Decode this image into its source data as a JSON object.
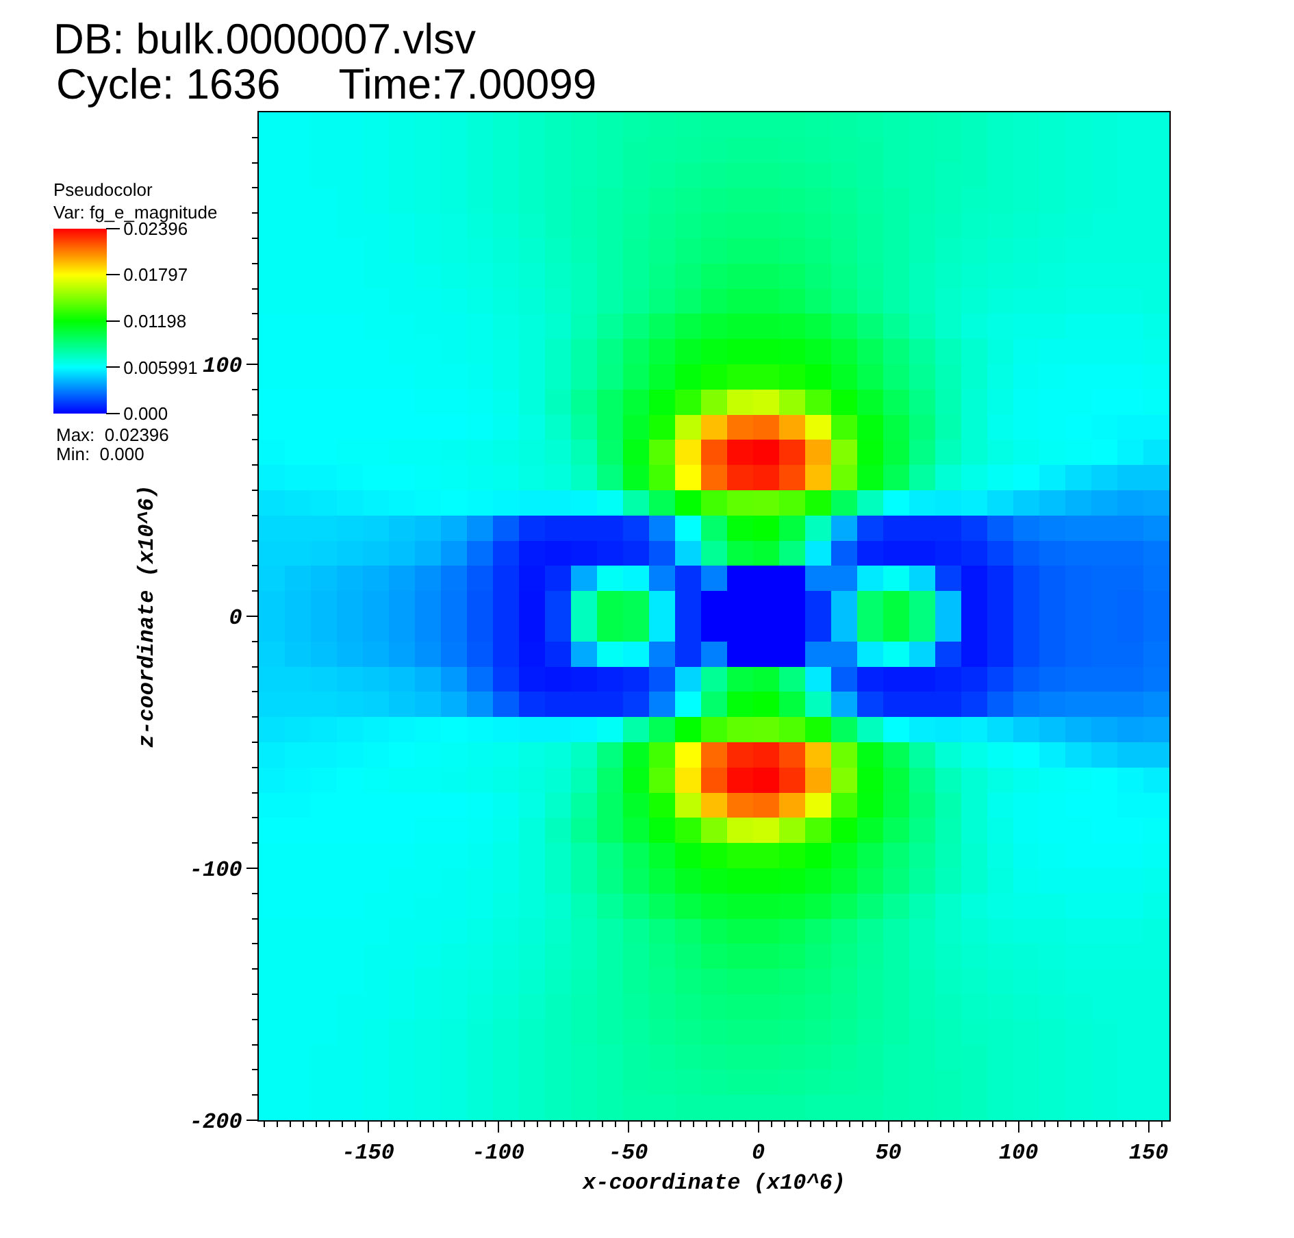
{
  "chart_data": {
    "type": "heatmap",
    "title": "DB: bulk.0000007.vlsv",
    "subtitle": "Cycle: 1636     Time:7.00099",
    "xlabel": "x-coordinate (x10^6)",
    "ylabel": "z-coordinate (x10^6)",
    "clabel": "Pseudocolor\nVar: fg_e_magnitude",
    "annotations": [
      "Max:  0.02396",
      "Min:  0.000"
    ],
    "xlim": [
      -192,
      158
    ],
    "ylim": [
      -200,
      200
    ],
    "xticks": [
      {
        "value": -190,
        "label": null
      },
      {
        "value": -185,
        "label": null
      },
      {
        "value": -180,
        "label": null
      },
      {
        "value": -175,
        "label": null
      },
      {
        "value": -170,
        "label": null
      },
      {
        "value": -165,
        "label": null
      },
      {
        "value": -160,
        "label": null
      },
      {
        "value": -155,
        "label": null
      },
      -150,
      {
        "value": -145,
        "label": null
      },
      {
        "value": -140,
        "label": null
      },
      {
        "value": -135,
        "label": null
      },
      {
        "value": -130,
        "label": null
      },
      {
        "value": -125,
        "label": null
      },
      {
        "value": -120,
        "label": null
      },
      {
        "value": -115,
        "label": null
      },
      {
        "value": -110,
        "label": null
      },
      {
        "value": -105,
        "label": null
      },
      -100,
      {
        "value": -95,
        "label": null
      },
      {
        "value": -90,
        "label": null
      },
      {
        "value": -85,
        "label": null
      },
      {
        "value": -80,
        "label": null
      },
      {
        "value": -75,
        "label": null
      },
      {
        "value": -70,
        "label": null
      },
      {
        "value": -65,
        "label": null
      },
      {
        "value": -60,
        "label": null
      },
      {
        "value": -55,
        "label": null
      },
      -50,
      {
        "value": -45,
        "label": null
      },
      {
        "value": -40,
        "label": null
      },
      {
        "value": -35,
        "label": null
      },
      {
        "value": -30,
        "label": null
      },
      {
        "value": -25,
        "label": null
      },
      {
        "value": -20,
        "label": null
      },
      {
        "value": -15,
        "label": null
      },
      {
        "value": -10,
        "label": null
      },
      {
        "value": -5,
        "label": null
      },
      0,
      {
        "value": 5,
        "label": null
      },
      {
        "value": 10,
        "label": null
      },
      {
        "value": 15,
        "label": null
      },
      {
        "value": 20,
        "label": null
      },
      {
        "value": 25,
        "label": null
      },
      {
        "value": 30,
        "label": null
      },
      {
        "value": 35,
        "label": null
      },
      {
        "value": 40,
        "label": null
      },
      {
        "value": 45,
        "label": null
      },
      50,
      {
        "value": 55,
        "label": null
      },
      {
        "value": 60,
        "label": null
      },
      {
        "value": 65,
        "label": null
      },
      {
        "value": 70,
        "label": null
      },
      {
        "value": 75,
        "label": null
      },
      {
        "value": 80,
        "label": null
      },
      {
        "value": 85,
        "label": null
      },
      {
        "value": 90,
        "label": null
      },
      {
        "value": 95,
        "label": null
      },
      100,
      {
        "value": 105,
        "label": null
      },
      {
        "value": 110,
        "label": null
      },
      {
        "value": 115,
        "label": null
      },
      {
        "value": 120,
        "label": null
      },
      {
        "value": 125,
        "label": null
      },
      {
        "value": 130,
        "label": null
      },
      {
        "value": 135,
        "label": null
      },
      {
        "value": 140,
        "label": null
      },
      {
        "value": 145,
        "label": null
      },
      150,
      {
        "value": 155,
        "label": null
      }
    ],
    "yticks": [
      -200,
      {
        "value": -190,
        "label": null
      },
      {
        "value": -180,
        "label": null
      },
      {
        "value": -170,
        "label": null
      },
      {
        "value": -160,
        "label": null
      },
      {
        "value": -150,
        "label": null
      },
      {
        "value": -140,
        "label": null
      },
      {
        "value": -130,
        "label": null
      },
      {
        "value": -120,
        "label": null
      },
      {
        "value": -110,
        "label": null
      },
      -100,
      {
        "value": -90,
        "label": null
      },
      {
        "value": -80,
        "label": null
      },
      {
        "value": -70,
        "label": null
      },
      {
        "value": -60,
        "label": null
      },
      {
        "value": -50,
        "label": null
      },
      {
        "value": -40,
        "label": null
      },
      {
        "value": -30,
        "label": null
      },
      {
        "value": -20,
        "label": null
      },
      {
        "value": -10,
        "label": null
      },
      0,
      {
        "value": 10,
        "label": null
      },
      {
        "value": 20,
        "label": null
      },
      {
        "value": 30,
        "label": null
      },
      {
        "value": 40,
        "label": null
      },
      {
        "value": 50,
        "label": null
      },
      {
        "value": 60,
        "label": null
      },
      {
        "value": 70,
        "label": null
      },
      {
        "value": 80,
        "label": null
      },
      {
        "value": 90,
        "label": null
      },
      100,
      {
        "value": 110,
        "label": null
      },
      {
        "value": 120,
        "label": null
      },
      {
        "value": 130,
        "label": null
      },
      {
        "value": 140,
        "label": null
      },
      {
        "value": 150,
        "label": null
      },
      {
        "value": 160,
        "label": null
      },
      {
        "value": 170,
        "label": null
      },
      {
        "value": 180,
        "label": null
      },
      {
        "value": 190,
        "label": null
      }
    ],
    "clim": [
      0,
      0.02396
    ],
    "cticks": [
      {
        "value": 0,
        "label": "0.000"
      },
      0.005991,
      0.01198,
      0.01797,
      0.02396
    ],
    "x": [
      -187,
      -177,
      -167,
      -157,
      -147,
      -137,
      -127,
      -117,
      -107,
      -97,
      -87,
      -77,
      -67,
      -57,
      -47,
      -37,
      -27,
      -17,
      -7,
      3,
      13,
      23,
      33,
      43,
      53,
      63,
      73,
      83,
      93,
      103,
      113,
      123,
      133,
      143,
      153
    ],
    "y": [
      195,
      185,
      175,
      165,
      155,
      145,
      135,
      125,
      115,
      105,
      95,
      85,
      75,
      65,
      55,
      45,
      35,
      25,
      15,
      5,
      -5,
      -15,
      -25,
      -35,
      -45,
      -55,
      -65,
      -75,
      -85,
      -95,
      -105,
      -115,
      -125,
      -135,
      -145,
      -155,
      -165,
      -175,
      -185,
      -195
    ],
    "cells": [
      [
        0.0062,
        0.0062,
        0.0063,
        0.0063,
        0.0064,
        0.0065,
        0.0066,
        0.0067,
        0.0069,
        0.0071,
        0.0073,
        0.0075,
        0.0077,
        0.0079,
        0.008,
        0.0081,
        0.0082,
        0.0083,
        0.0083,
        0.0083,
        0.0083,
        0.0082,
        0.0081,
        0.008,
        0.0079,
        0.0078,
        0.0077,
        0.0075,
        0.0073,
        0.0072,
        0.0071,
        0.007,
        0.0069,
        0.0068,
        0.0068
      ],
      [
        0.0062,
        0.0062,
        0.0063,
        0.0063,
        0.0064,
        0.0065,
        0.0066,
        0.0067,
        0.0069,
        0.0071,
        0.0073,
        0.0075,
        0.0077,
        0.0079,
        0.0081,
        0.0082,
        0.0083,
        0.0084,
        0.0085,
        0.0085,
        0.0084,
        0.0083,
        0.0082,
        0.0081,
        0.0079,
        0.0078,
        0.0077,
        0.0075,
        0.0073,
        0.0072,
        0.0071,
        0.007,
        0.0069,
        0.0068,
        0.0068
      ],
      [
        0.0062,
        0.0062,
        0.0063,
        0.0063,
        0.0064,
        0.0065,
        0.0066,
        0.0067,
        0.0069,
        0.0071,
        0.0073,
        0.0075,
        0.0077,
        0.0079,
        0.0081,
        0.0083,
        0.0085,
        0.0086,
        0.0087,
        0.0087,
        0.0086,
        0.0085,
        0.0083,
        0.0081,
        0.0079,
        0.0078,
        0.0076,
        0.0075,
        0.0073,
        0.0072,
        0.0071,
        0.007,
        0.0069,
        0.0068,
        0.0068
      ],
      [
        0.0062,
        0.0062,
        0.0062,
        0.0063,
        0.0064,
        0.0065,
        0.0066,
        0.0067,
        0.0069,
        0.0071,
        0.0073,
        0.0075,
        0.0078,
        0.008,
        0.0082,
        0.0085,
        0.0087,
        0.0088,
        0.0089,
        0.0089,
        0.0088,
        0.0087,
        0.0085,
        0.0082,
        0.008,
        0.0078,
        0.0076,
        0.0074,
        0.0073,
        0.0072,
        0.0071,
        0.007,
        0.0069,
        0.0068,
        0.0068
      ],
      [
        0.0062,
        0.0062,
        0.0062,
        0.0063,
        0.0063,
        0.0064,
        0.0065,
        0.0066,
        0.0068,
        0.007,
        0.0072,
        0.0075,
        0.0078,
        0.008,
        0.0083,
        0.0086,
        0.0088,
        0.009,
        0.0091,
        0.0091,
        0.009,
        0.0088,
        0.0086,
        0.0083,
        0.008,
        0.0077,
        0.0075,
        0.0073,
        0.0072,
        0.0071,
        0.007,
        0.0069,
        0.0068,
        0.0068,
        0.0068
      ],
      [
        0.0062,
        0.0062,
        0.0062,
        0.0062,
        0.0063,
        0.0064,
        0.0065,
        0.0066,
        0.0067,
        0.0069,
        0.0071,
        0.0074,
        0.0077,
        0.008,
        0.0084,
        0.0087,
        0.009,
        0.0092,
        0.0094,
        0.0094,
        0.0092,
        0.009,
        0.0087,
        0.0083,
        0.008,
        0.0077,
        0.0074,
        0.0072,
        0.0071,
        0.007,
        0.0069,
        0.0068,
        0.0068,
        0.0068,
        0.0068
      ],
      [
        0.0062,
        0.0062,
        0.0062,
        0.0062,
        0.0063,
        0.0063,
        0.0064,
        0.0065,
        0.0066,
        0.0068,
        0.007,
        0.0073,
        0.0076,
        0.008,
        0.0084,
        0.0088,
        0.0092,
        0.0096,
        0.0098,
        0.0098,
        0.0096,
        0.0092,
        0.0088,
        0.0084,
        0.008,
        0.0076,
        0.0073,
        0.0071,
        0.007,
        0.0069,
        0.0068,
        0.0067,
        0.0067,
        0.0067,
        0.0067
      ],
      [
        0.0062,
        0.0062,
        0.0062,
        0.0062,
        0.0062,
        0.0063,
        0.0063,
        0.0064,
        0.0065,
        0.0067,
        0.0069,
        0.0072,
        0.0076,
        0.008,
        0.0085,
        0.009,
        0.0095,
        0.01,
        0.0103,
        0.0103,
        0.01,
        0.0095,
        0.009,
        0.0085,
        0.008,
        0.0076,
        0.0072,
        0.007,
        0.0068,
        0.0067,
        0.0067,
        0.0066,
        0.0066,
        0.0066,
        0.0067
      ],
      [
        0.0061,
        0.0061,
        0.0061,
        0.0061,
        0.0062,
        0.0062,
        0.0063,
        0.0063,
        0.0064,
        0.0066,
        0.0068,
        0.0071,
        0.0077,
        0.0084,
        0.0091,
        0.0098,
        0.0104,
        0.0108,
        0.011,
        0.011,
        0.0109,
        0.0105,
        0.0099,
        0.0092,
        0.0085,
        0.0078,
        0.0072,
        0.0068,
        0.0066,
        0.0065,
        0.0065,
        0.0064,
        0.0064,
        0.0064,
        0.0065
      ],
      [
        0.0061,
        0.0061,
        0.0061,
        0.0061,
        0.0061,
        0.0062,
        0.0062,
        0.0063,
        0.0064,
        0.0065,
        0.0068,
        0.0073,
        0.008,
        0.0088,
        0.0097,
        0.0105,
        0.0112,
        0.0116,
        0.0118,
        0.0118,
        0.0117,
        0.0113,
        0.0107,
        0.0099,
        0.0091,
        0.0083,
        0.0076,
        0.0071,
        0.0067,
        0.0064,
        0.0063,
        0.0063,
        0.0063,
        0.0063,
        0.0064
      ],
      [
        0.0061,
        0.0061,
        0.0061,
        0.0061,
        0.0061,
        0.0061,
        0.0062,
        0.0062,
        0.0063,
        0.0065,
        0.0068,
        0.0073,
        0.008,
        0.0089,
        0.0099,
        0.0109,
        0.0118,
        0.0123,
        0.0127,
        0.0127,
        0.0124,
        0.0119,
        0.0111,
        0.0102,
        0.0093,
        0.0085,
        0.0077,
        0.0071,
        0.0066,
        0.0063,
        0.0062,
        0.0061,
        0.0061,
        0.0061,
        0.0062
      ],
      [
        0.006,
        0.006,
        0.006,
        0.006,
        0.006,
        0.006,
        0.0061,
        0.0061,
        0.0062,
        0.0064,
        0.0068,
        0.0075,
        0.0085,
        0.0096,
        0.0107,
        0.0118,
        0.013,
        0.015,
        0.0166,
        0.0168,
        0.0155,
        0.0137,
        0.0121,
        0.011,
        0.0099,
        0.0088,
        0.0078,
        0.007,
        0.0065,
        0.0062,
        0.0061,
        0.0061,
        0.006,
        0.006,
        0.0061
      ],
      [
        0.006,
        0.006,
        0.006,
        0.006,
        0.006,
        0.006,
        0.006,
        0.006,
        0.0061,
        0.0063,
        0.0066,
        0.0072,
        0.0082,
        0.0096,
        0.011,
        0.0125,
        0.0165,
        0.0195,
        0.0212,
        0.0214,
        0.02,
        0.0175,
        0.0135,
        0.0117,
        0.0104,
        0.0091,
        0.0079,
        0.007,
        0.0064,
        0.0062,
        0.0061,
        0.006,
        0.0059,
        0.0058,
        0.0058
      ],
      [
        0.0059,
        0.006,
        0.006,
        0.0061,
        0.0061,
        0.0062,
        0.0062,
        0.0063,
        0.0064,
        0.0065,
        0.0067,
        0.007,
        0.0077,
        0.0095,
        0.0115,
        0.014,
        0.0185,
        0.022,
        0.0237,
        0.0239,
        0.0228,
        0.02,
        0.015,
        0.0118,
        0.0105,
        0.0088,
        0.0076,
        0.007,
        0.0066,
        0.0064,
        0.0062,
        0.0061,
        0.006,
        0.0057,
        0.0054
      ],
      [
        0.0057,
        0.0058,
        0.0058,
        0.0059,
        0.006,
        0.006,
        0.0061,
        0.0062,
        0.0063,
        0.0064,
        0.0066,
        0.0068,
        0.0074,
        0.009,
        0.0112,
        0.0135,
        0.018,
        0.0215,
        0.023,
        0.0232,
        0.0222,
        0.0195,
        0.0145,
        0.0115,
        0.01,
        0.0082,
        0.007,
        0.0065,
        0.0062,
        0.006,
        0.0056,
        0.0052,
        0.0049,
        0.0047,
        0.0047
      ],
      [
        0.0053,
        0.0054,
        0.0055,
        0.0056,
        0.0057,
        0.0058,
        0.0059,
        0.006,
        0.0059,
        0.0058,
        0.0057,
        0.0057,
        0.0058,
        0.0062,
        0.008,
        0.01,
        0.012,
        0.0135,
        0.0142,
        0.0143,
        0.0138,
        0.0125,
        0.0098,
        0.0075,
        0.006,
        0.0056,
        0.0055,
        0.0056,
        0.0052,
        0.0048,
        0.0045,
        0.0042,
        0.004,
        0.0038,
        0.0039
      ],
      [
        0.0051,
        0.0051,
        0.0051,
        0.005,
        0.0049,
        0.0047,
        0.0045,
        0.0041,
        0.0034,
        0.0022,
        0.0012,
        0.001,
        0.001,
        0.001,
        0.0014,
        0.003,
        0.006,
        0.0095,
        0.0118,
        0.012,
        0.0105,
        0.0075,
        0.004,
        0.0015,
        0.001,
        0.001,
        0.001,
        0.0014,
        0.0022,
        0.0028,
        0.003,
        0.0031,
        0.0031,
        0.0031,
        0.0033
      ],
      [
        0.005,
        0.005,
        0.0049,
        0.0048,
        0.0047,
        0.0045,
        0.0042,
        0.0036,
        0.0026,
        0.0014,
        0.0006,
        0.0005,
        0.0006,
        0.0008,
        0.001,
        0.002,
        0.005,
        0.0085,
        0.0105,
        0.0108,
        0.009,
        0.0055,
        0.0022,
        0.0008,
        0.0006,
        0.0006,
        0.0008,
        0.001,
        0.0016,
        0.0022,
        0.0025,
        0.0026,
        0.0026,
        0.0026,
        0.0028
      ],
      [
        0.0049,
        0.0047,
        0.0045,
        0.0043,
        0.0041,
        0.0038,
        0.0034,
        0.0029,
        0.0021,
        0.0012,
        0.0005,
        0.001,
        0.004,
        0.0062,
        0.0058,
        0.003,
        0.0012,
        0.003,
        0,
        0,
        0,
        0.003,
        0.003,
        0.0055,
        0.0062,
        0.005,
        0.0015,
        0.0005,
        0.001,
        0.0018,
        0.0022,
        0.0024,
        0.0025,
        0.0025,
        0.0027
      ],
      [
        0.0048,
        0.0046,
        0.0044,
        0.0042,
        0.004,
        0.0037,
        0.0033,
        0.0028,
        0.002,
        0.0012,
        0.0004,
        0.0015,
        0.0075,
        0.0103,
        0.01,
        0.0055,
        0.0012,
        0,
        0,
        0,
        0,
        0.0012,
        0.0045,
        0.0095,
        0.0105,
        0.009,
        0.0045,
        0.0005,
        0.001,
        0.0018,
        0.0022,
        0.0024,
        0.0025,
        0.0024,
        0.0026
      ],
      [
        0.0048,
        0.0046,
        0.0044,
        0.0042,
        0.004,
        0.0037,
        0.0033,
        0.0028,
        0.002,
        0.0012,
        0.0004,
        0.0015,
        0.0075,
        0.0103,
        0.01,
        0.0055,
        0.0012,
        0,
        0,
        0,
        0,
        0.0012,
        0.0045,
        0.0095,
        0.0105,
        0.009,
        0.0045,
        0.0005,
        0.001,
        0.0018,
        0.0022,
        0.0024,
        0.0025,
        0.0024,
        0.0026
      ],
      [
        0.0049,
        0.0047,
        0.0045,
        0.0043,
        0.0041,
        0.0038,
        0.0034,
        0.0029,
        0.0021,
        0.0012,
        0.0005,
        0.001,
        0.004,
        0.0062,
        0.0058,
        0.003,
        0.0012,
        0.003,
        0,
        0,
        0,
        0.003,
        0.003,
        0.0055,
        0.0062,
        0.005,
        0.0015,
        0.0005,
        0.001,
        0.0018,
        0.0022,
        0.0024,
        0.0025,
        0.0025,
        0.0027
      ],
      [
        0.005,
        0.005,
        0.0049,
        0.0048,
        0.0047,
        0.0045,
        0.0042,
        0.0036,
        0.0026,
        0.0014,
        0.0006,
        0.0005,
        0.0006,
        0.0008,
        0.001,
        0.002,
        0.005,
        0.0085,
        0.0105,
        0.0108,
        0.009,
        0.0055,
        0.0022,
        0.0008,
        0.0006,
        0.0006,
        0.0008,
        0.001,
        0.0016,
        0.0022,
        0.0025,
        0.0026,
        0.0026,
        0.0026,
        0.0028
      ],
      [
        0.0051,
        0.0051,
        0.0051,
        0.005,
        0.0049,
        0.0047,
        0.0045,
        0.0041,
        0.0034,
        0.0022,
        0.0012,
        0.001,
        0.001,
        0.001,
        0.0014,
        0.003,
        0.006,
        0.0095,
        0.0118,
        0.012,
        0.0105,
        0.0075,
        0.004,
        0.0015,
        0.001,
        0.001,
        0.001,
        0.0014,
        0.0022,
        0.0028,
        0.003,
        0.0031,
        0.0031,
        0.0031,
        0.0033
      ],
      [
        0.0053,
        0.0054,
        0.0055,
        0.0056,
        0.0057,
        0.0058,
        0.0059,
        0.006,
        0.0059,
        0.0058,
        0.0057,
        0.0057,
        0.0058,
        0.0062,
        0.008,
        0.01,
        0.012,
        0.0135,
        0.0142,
        0.0143,
        0.0138,
        0.0125,
        0.0098,
        0.0075,
        0.006,
        0.0056,
        0.0055,
        0.0056,
        0.0052,
        0.0048,
        0.0045,
        0.0042,
        0.004,
        0.0038,
        0.0039
      ],
      [
        0.0056,
        0.0057,
        0.0057,
        0.0058,
        0.0059,
        0.006,
        0.0061,
        0.0062,
        0.0063,
        0.0064,
        0.0066,
        0.0068,
        0.0074,
        0.009,
        0.0112,
        0.0135,
        0.018,
        0.0215,
        0.023,
        0.0232,
        0.0222,
        0.0195,
        0.0145,
        0.0115,
        0.01,
        0.0082,
        0.007,
        0.0065,
        0.0062,
        0.006,
        0.0056,
        0.0052,
        0.0049,
        0.0047,
        0.0047
      ],
      [
        0.0057,
        0.0058,
        0.0059,
        0.006,
        0.0061,
        0.0062,
        0.0062,
        0.0063,
        0.0064,
        0.0065,
        0.0067,
        0.007,
        0.0077,
        0.0095,
        0.0115,
        0.014,
        0.0185,
        0.022,
        0.0237,
        0.0239,
        0.0228,
        0.02,
        0.015,
        0.0118,
        0.0105,
        0.0088,
        0.0076,
        0.007,
        0.0066,
        0.0064,
        0.0062,
        0.0061,
        0.006,
        0.0058,
        0.0056
      ],
      [
        0.0059,
        0.0059,
        0.006,
        0.006,
        0.006,
        0.006,
        0.006,
        0.006,
        0.0061,
        0.0063,
        0.0066,
        0.0072,
        0.0082,
        0.0096,
        0.011,
        0.0125,
        0.0165,
        0.0195,
        0.0212,
        0.0214,
        0.02,
        0.0175,
        0.0135,
        0.0117,
        0.0104,
        0.0091,
        0.0079,
        0.007,
        0.0064,
        0.0062,
        0.0061,
        0.006,
        0.006,
        0.0059,
        0.0059
      ],
      [
        0.006,
        0.006,
        0.006,
        0.006,
        0.006,
        0.006,
        0.0061,
        0.0061,
        0.0062,
        0.0064,
        0.0068,
        0.0075,
        0.0085,
        0.0096,
        0.0107,
        0.0118,
        0.013,
        0.015,
        0.0166,
        0.0168,
        0.0155,
        0.0137,
        0.0121,
        0.011,
        0.0099,
        0.0088,
        0.0078,
        0.007,
        0.0065,
        0.0062,
        0.0061,
        0.0061,
        0.006,
        0.006,
        0.0061
      ],
      [
        0.0061,
        0.0061,
        0.0061,
        0.0061,
        0.0061,
        0.0061,
        0.0062,
        0.0062,
        0.0063,
        0.0065,
        0.0068,
        0.0073,
        0.008,
        0.0089,
        0.0099,
        0.0109,
        0.0118,
        0.0123,
        0.0127,
        0.0127,
        0.0124,
        0.0119,
        0.0111,
        0.0102,
        0.0093,
        0.0085,
        0.0077,
        0.0071,
        0.0066,
        0.0063,
        0.0062,
        0.0061,
        0.0061,
        0.0061,
        0.0062
      ],
      [
        0.0061,
        0.0061,
        0.0061,
        0.0061,
        0.0061,
        0.0062,
        0.0062,
        0.0063,
        0.0064,
        0.0065,
        0.0068,
        0.0073,
        0.008,
        0.0088,
        0.0097,
        0.0105,
        0.0112,
        0.0116,
        0.0118,
        0.0118,
        0.0117,
        0.0113,
        0.0107,
        0.0099,
        0.0091,
        0.0083,
        0.0076,
        0.0071,
        0.0067,
        0.0064,
        0.0063,
        0.0063,
        0.0063,
        0.0063,
        0.0064
      ],
      [
        0.0061,
        0.0061,
        0.0061,
        0.0061,
        0.0062,
        0.0062,
        0.0063,
        0.0063,
        0.0064,
        0.0066,
        0.0068,
        0.0071,
        0.0077,
        0.0084,
        0.0091,
        0.0098,
        0.0104,
        0.0108,
        0.011,
        0.011,
        0.0109,
        0.0105,
        0.0099,
        0.0092,
        0.0085,
        0.0078,
        0.0072,
        0.0068,
        0.0066,
        0.0065,
        0.0065,
        0.0064,
        0.0064,
        0.0064,
        0.0065
      ],
      [
        0.0062,
        0.0062,
        0.0062,
        0.0062,
        0.0062,
        0.0063,
        0.0063,
        0.0064,
        0.0065,
        0.0067,
        0.0069,
        0.0072,
        0.0076,
        0.008,
        0.0085,
        0.009,
        0.0095,
        0.01,
        0.0103,
        0.0103,
        0.01,
        0.0095,
        0.009,
        0.0085,
        0.008,
        0.0076,
        0.0072,
        0.007,
        0.0068,
        0.0067,
        0.0067,
        0.0066,
        0.0066,
        0.0066,
        0.0067
      ],
      [
        0.0062,
        0.0062,
        0.0062,
        0.0062,
        0.0063,
        0.0063,
        0.0064,
        0.0065,
        0.0066,
        0.0068,
        0.007,
        0.0073,
        0.0076,
        0.008,
        0.0084,
        0.0088,
        0.0092,
        0.0096,
        0.0098,
        0.0098,
        0.0096,
        0.0092,
        0.0088,
        0.0084,
        0.008,
        0.0076,
        0.0073,
        0.0071,
        0.007,
        0.0069,
        0.0068,
        0.0067,
        0.0067,
        0.0067,
        0.0067
      ],
      [
        0.0062,
        0.0062,
        0.0062,
        0.0062,
        0.0063,
        0.0064,
        0.0065,
        0.0066,
        0.0067,
        0.0069,
        0.0071,
        0.0074,
        0.0077,
        0.008,
        0.0084,
        0.0087,
        0.009,
        0.0092,
        0.0094,
        0.0094,
        0.0092,
        0.009,
        0.0087,
        0.0083,
        0.008,
        0.0077,
        0.0074,
        0.0072,
        0.0071,
        0.007,
        0.0069,
        0.0068,
        0.0068,
        0.0068,
        0.0068
      ],
      [
        0.0062,
        0.0062,
        0.0062,
        0.0063,
        0.0063,
        0.0064,
        0.0065,
        0.0066,
        0.0068,
        0.007,
        0.0072,
        0.0075,
        0.0078,
        0.008,
        0.0083,
        0.0086,
        0.0088,
        0.009,
        0.0091,
        0.0091,
        0.009,
        0.0088,
        0.0086,
        0.0083,
        0.008,
        0.0077,
        0.0075,
        0.0073,
        0.0072,
        0.0071,
        0.007,
        0.0069,
        0.0068,
        0.0068,
        0.0068
      ],
      [
        0.0062,
        0.0062,
        0.0062,
        0.0063,
        0.0064,
        0.0065,
        0.0066,
        0.0067,
        0.0069,
        0.0071,
        0.0073,
        0.0075,
        0.0078,
        0.008,
        0.0082,
        0.0085,
        0.0087,
        0.0088,
        0.0089,
        0.0089,
        0.0088,
        0.0087,
        0.0085,
        0.0082,
        0.008,
        0.0078,
        0.0076,
        0.0074,
        0.0073,
        0.0072,
        0.0071,
        0.007,
        0.0069,
        0.0068,
        0.0068
      ],
      [
        0.0062,
        0.0062,
        0.0063,
        0.0063,
        0.0064,
        0.0065,
        0.0066,
        0.0067,
        0.0069,
        0.0071,
        0.0073,
        0.0075,
        0.0077,
        0.0079,
        0.0081,
        0.0083,
        0.0085,
        0.0086,
        0.0087,
        0.0087,
        0.0086,
        0.0085,
        0.0083,
        0.0081,
        0.0079,
        0.0078,
        0.0076,
        0.0075,
        0.0073,
        0.0072,
        0.0071,
        0.007,
        0.0069,
        0.0068,
        0.0068
      ],
      [
        0.0062,
        0.0062,
        0.0063,
        0.0063,
        0.0064,
        0.0065,
        0.0066,
        0.0067,
        0.0069,
        0.0071,
        0.0073,
        0.0075,
        0.0077,
        0.0079,
        0.0081,
        0.0082,
        0.0083,
        0.0084,
        0.0085,
        0.0085,
        0.0084,
        0.0083,
        0.0082,
        0.0081,
        0.0079,
        0.0078,
        0.0077,
        0.0075,
        0.0073,
        0.0072,
        0.0071,
        0.007,
        0.0069,
        0.0068,
        0.0068
      ],
      [
        0.0062,
        0.0062,
        0.0063,
        0.0063,
        0.0064,
        0.0065,
        0.0066,
        0.0067,
        0.0069,
        0.0071,
        0.0073,
        0.0075,
        0.0077,
        0.0079,
        0.008,
        0.008,
        0.0081,
        0.0081,
        0.0081,
        0.0081,
        0.0081,
        0.008,
        0.008,
        0.008,
        0.0079,
        0.0078,
        0.0077,
        0.0075,
        0.0073,
        0.0072,
        0.0071,
        0.007,
        0.0069,
        0.0068,
        0.0068
      ]
    ]
  }
}
